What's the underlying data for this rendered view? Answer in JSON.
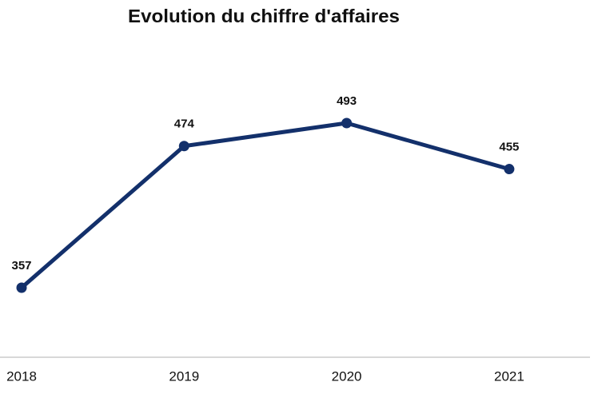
{
  "chart_data": {
    "type": "line",
    "title": "Evolution du chiffre d'affaires",
    "categories": [
      "2018",
      "2019",
      "2020",
      "2021"
    ],
    "values": [
      357,
      474,
      493,
      455
    ],
    "color": "#13306b"
  }
}
